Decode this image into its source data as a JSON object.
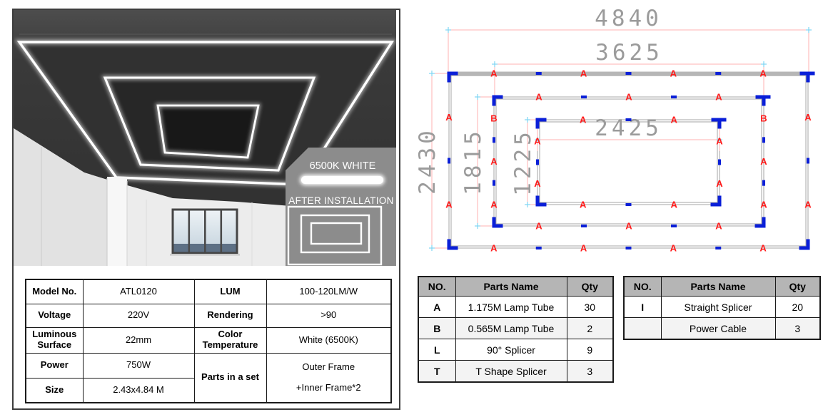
{
  "photo": {
    "color_temp_label": "6500K WHITE",
    "after_install_label": "AFTER INSTALLATION"
  },
  "spec": {
    "rows": [
      {
        "l1": "Model No.",
        "v1": "ATL0120",
        "l2": "LUM",
        "v2": "100-120LM/W"
      },
      {
        "l1": "Voltage",
        "v1": "220V",
        "l2": "Rendering",
        "v2": ">90"
      },
      {
        "l1": "Luminous Surface",
        "v1": "22mm",
        "l2": "Color Temperature",
        "v2": "White (6500K)"
      },
      {
        "l1": "Power",
        "v1": "750W",
        "l2": "Parts in a set",
        "v2a": "Outer Frame",
        "v2b": "+Inner Frame*2"
      },
      {
        "l1": "Size",
        "v1": "2.43x4.84 M"
      }
    ]
  },
  "diagram": {
    "dimensions": {
      "outer_width": "4840",
      "middle_width": "3625",
      "inner_width": "2425",
      "outer_height": "2430",
      "middle_height": "1815",
      "inner_height": "1225"
    },
    "frames": [
      {
        "name": "outer-frame",
        "top": [
          "A",
          "I",
          "A",
          "I",
          "A",
          "I",
          "A"
        ],
        "bottom": [
          "A",
          "I",
          "A",
          "I",
          "A",
          "I",
          "A"
        ],
        "left": [
          "A",
          "I",
          "A"
        ],
        "right": [
          "A",
          "I",
          "A"
        ]
      },
      {
        "name": "middle-frame",
        "top": [
          "A",
          "I",
          "A",
          "I",
          "A"
        ],
        "bottom": [
          "A",
          "I",
          "A",
          "I",
          "A"
        ],
        "left": [
          "B",
          "I",
          "A",
          "I",
          "A"
        ],
        "right": [
          "B",
          "I",
          "A",
          "I",
          "A"
        ]
      },
      {
        "name": "inner-frame",
        "top": [
          "A",
          "I",
          "A"
        ],
        "bottom": [
          "A",
          "I",
          "A"
        ],
        "left": [
          "A",
          "I",
          "A"
        ],
        "right": [
          "A",
          "I",
          "A"
        ]
      }
    ],
    "colors": {
      "dim_line": "#ffb0b0",
      "dim_text": "#9b9b9b",
      "tick": "#7ed6f2",
      "lamp_label": "#ff1a1a",
      "splicer": "#0a1fd8",
      "tube_outline": "#a6a6a6",
      "top_band": "#b6b6b6"
    }
  },
  "parts_tables": [
    {
      "name": "parts-table-main",
      "headers": [
        "NO.",
        "Parts Name",
        "Qty"
      ],
      "rows": [
        [
          "A",
          "1.175M Lamp Tube",
          "30"
        ],
        [
          "B",
          "0.565M Lamp Tube",
          "2"
        ],
        [
          "L",
          "90° Splicer",
          "9"
        ],
        [
          "T",
          "T Shape Splicer",
          "3"
        ]
      ]
    },
    {
      "name": "parts-table-extra",
      "headers": [
        "NO.",
        "Parts Name",
        "Qty"
      ],
      "rows": [
        [
          "I",
          "Straight Splicer",
          "20"
        ],
        [
          "",
          "Power Cable",
          "3"
        ]
      ]
    }
  ]
}
